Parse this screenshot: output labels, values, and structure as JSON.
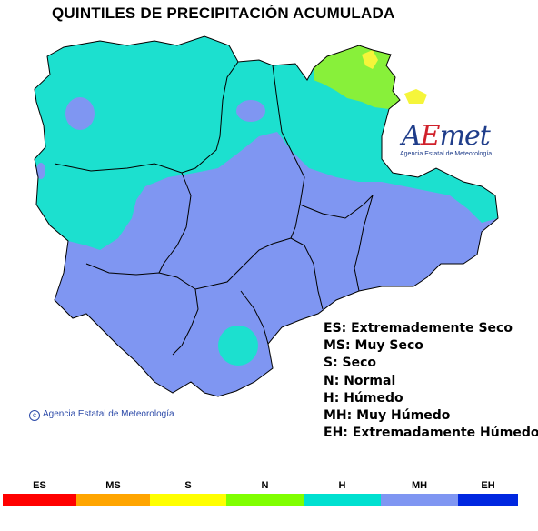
{
  "title": "QUINTILES DE PRECIPITACIÓN ACUMULADA",
  "logo": {
    "text_main": "AEmet",
    "text_sub": "Agencia Estatal de Meteorología"
  },
  "copyright": "Agencia Estatal de Meteorología",
  "legend_items": [
    "ES: Extremademente Seco",
    "MS: Muy Seco",
    "S: Seco",
    "N: Normal",
    "H: Húmedo",
    "MH: Muy Húmedo",
    "EH: Extremadamente Húmedo"
  ],
  "scale": [
    {
      "code": "ES",
      "color": "#ff0000"
    },
    {
      "code": "MS",
      "color": "#ffa500"
    },
    {
      "code": "S",
      "color": "#ffff00"
    },
    {
      "code": "N",
      "color": "#80ff00"
    },
    {
      "code": "H",
      "color": "#00e0d0"
    },
    {
      "code": "MH",
      "color": "#7f96f2"
    },
    {
      "code": "EH",
      "color": "#0027e0"
    }
  ],
  "colors": {
    "muy_humedo": "#7f96f2",
    "humedo": "#1ce0cf",
    "normal": "#88f03a",
    "seco": "#f5f53a",
    "borders": "#000000"
  }
}
